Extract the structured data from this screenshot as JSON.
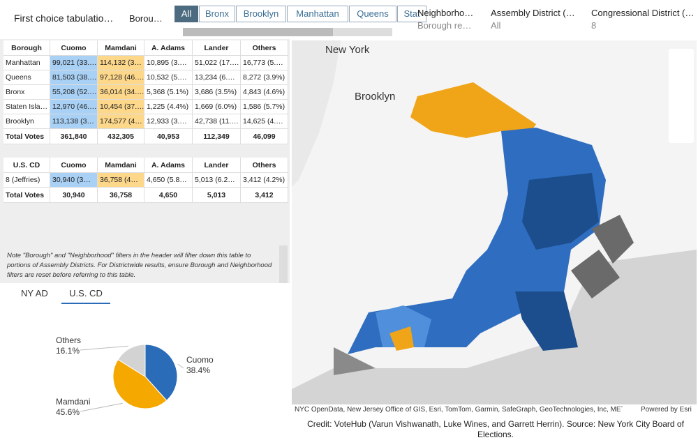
{
  "header": {
    "title": "First choice tabulatio…",
    "borough_label": "Borou…",
    "tabs": [
      "All",
      "Bronx",
      "Brooklyn",
      "Manhattan",
      "Queens",
      "Stat"
    ],
    "filters": [
      {
        "label": "Neighborho…",
        "value": "Borough re…"
      },
      {
        "label": "Assembly District (…",
        "value": "All"
      },
      {
        "label": "Congressional District (…",
        "value": "8"
      }
    ]
  },
  "table1": {
    "columns": [
      "Borough",
      "Cuomo",
      "Mamdani",
      "A. Adams",
      "Lander",
      "Others"
    ],
    "rows": [
      [
        "Manhattan",
        "99,021 (33.…",
        "114,132 (3…",
        "10,895 (3.…",
        "51,022 (17.…",
        "16,773 (5.…"
      ],
      [
        "Queens",
        "81,503 (38.…",
        "97,128 (46.…",
        "10,532 (5.…",
        "13,234 (6.…",
        "8,272 (3.9%)"
      ],
      [
        "Bronx",
        "55,208 (52.…",
        "36,014 (34.…",
        "5,368 (5.1%)",
        "3,686 (3.5%)",
        "4,843 (4.6%)"
      ],
      [
        "Staten Isla…",
        "12,970 (46.…",
        "10,454 (37.…",
        "1,225 (4.4%)",
        "1,669 (6.0%)",
        "1,586 (5.7%)"
      ],
      [
        "Brooklyn",
        "113,138 (3…",
        "174,577 (4…",
        "12,933 (3.…",
        "42,738 (11.…",
        "14,625 (4.…"
      ]
    ],
    "total": [
      "Total Votes",
      "361,840",
      "432,305",
      "40,953",
      "112,349",
      "46,099"
    ]
  },
  "table2": {
    "columns": [
      "U.S. CD",
      "Cuomo",
      "Mamdani",
      "A. Adams",
      "Lander",
      "Others"
    ],
    "rows": [
      [
        "8 (Jeffries)",
        "30,940 (3…",
        "36,758 (4…",
        "4,650 (5.8…",
        "5,013 (6.2…",
        "3,412 (4.2%)"
      ]
    ],
    "total": [
      "Total Votes",
      "30,940",
      "36,758",
      "4,650",
      "5,013",
      "3,412"
    ]
  },
  "note": "Note \"Borough\" and \"Neighborhood\" filters in the header will filter down this table to portions of Assembly Districts. For Districtwide results, ensure Borough and Neighborhood filters are reset before referring to this table.",
  "tabs2": [
    "NY AD",
    "U.S. CD"
  ],
  "chart_data": {
    "type": "pie",
    "categories": [
      "Cuomo",
      "Mamdani",
      "Others"
    ],
    "values": [
      38.4,
      45.6,
      16.1
    ],
    "value_labels": [
      "38.4%",
      "45.6%",
      "16.1%"
    ],
    "colors": [
      "#2b6cb8",
      "#f5a800",
      "#d3d3d3"
    ]
  },
  "map": {
    "labels": [
      "New York",
      "Brooklyn"
    ],
    "attribution": "NYC OpenData, New Jersey Office of GIS, Esri, TomTom, Garmin, SafeGraph, GeoTechnologies, Inc, METI…",
    "powered": "Powered by Esri"
  },
  "credit": "Credit: VoteHub (Varun Vishwanath, Luke Wines, and Garrett Herrin). Source: New York City Board of Elections."
}
